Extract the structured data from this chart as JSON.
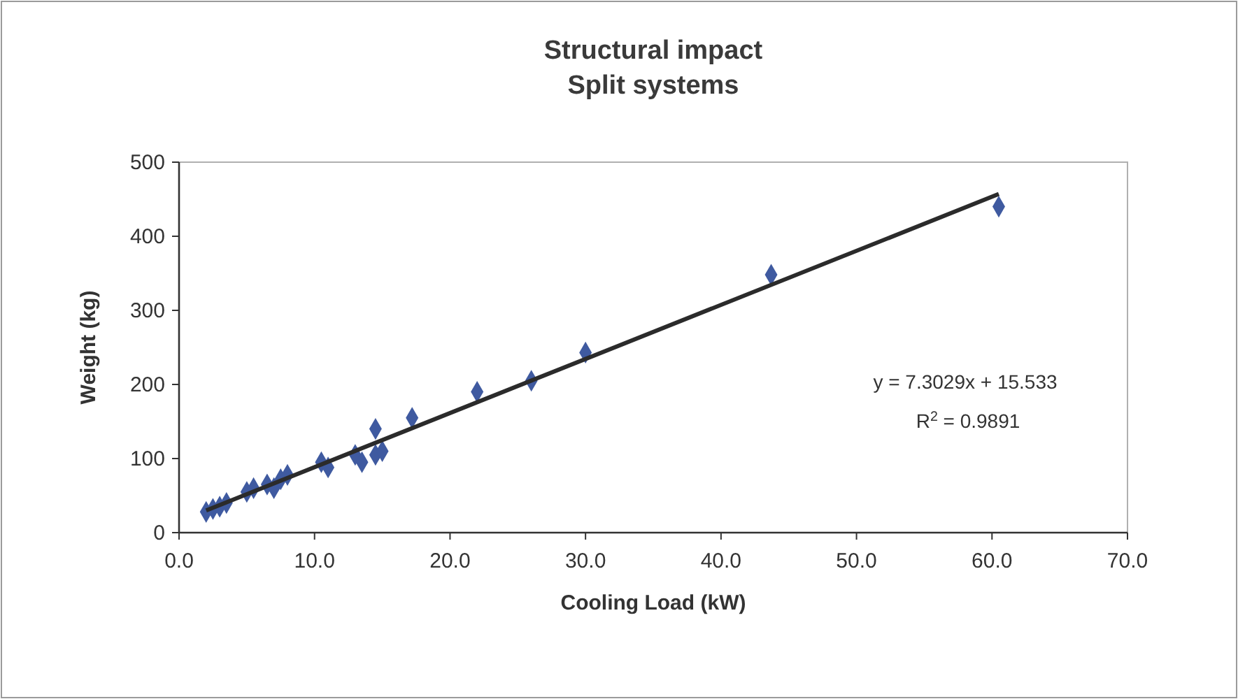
{
  "chart_data": {
    "type": "scatter",
    "title": "Structural impact\nSplit systems",
    "xlabel": "Cooling Load (kW)",
    "ylabel": "Weight (kg)",
    "xlim": [
      0,
      70
    ],
    "xticks": [
      {
        "value": 0,
        "label": "0.0"
      },
      {
        "value": 10,
        "label": "10.0"
      },
      {
        "value": 20,
        "label": "20.0"
      },
      {
        "value": 30,
        "label": "30.0"
      },
      {
        "value": 40,
        "label": "40.0"
      },
      {
        "value": 50,
        "label": "50.0"
      },
      {
        "value": 60,
        "label": "60.0"
      },
      {
        "value": 70,
        "label": "70.0"
      }
    ],
    "ylim": [
      0,
      500
    ],
    "yticks": [
      0,
      100,
      200,
      300,
      400,
      500
    ],
    "grid": false,
    "marker": "diamond",
    "series": [
      {
        "color": "#3f5aa0",
        "x": [
          2,
          2.5,
          3,
          3.5,
          5,
          5.5,
          6.5,
          7,
          7.5,
          8,
          10.5,
          11,
          13,
          13.5,
          14.5,
          14.5,
          15,
          17.2,
          22,
          26,
          30,
          43.7,
          60.5
        ],
        "values": [
          28,
          32,
          35,
          40,
          55,
          60,
          65,
          60,
          72,
          78,
          95,
          88,
          105,
          95,
          140,
          105,
          110,
          155,
          190,
          205,
          243,
          348,
          440
        ]
      },
      {
        "type": "line",
        "color": "#2b2b2b",
        "line_style": "solid",
        "marker": "none",
        "x": [
          2,
          60.5
        ],
        "values": [
          30,
          457
        ]
      }
    ],
    "annotations": [
      "y = 7.3029x + 15.533",
      "R$^{2}$ = 0.9891"
    ]
  }
}
